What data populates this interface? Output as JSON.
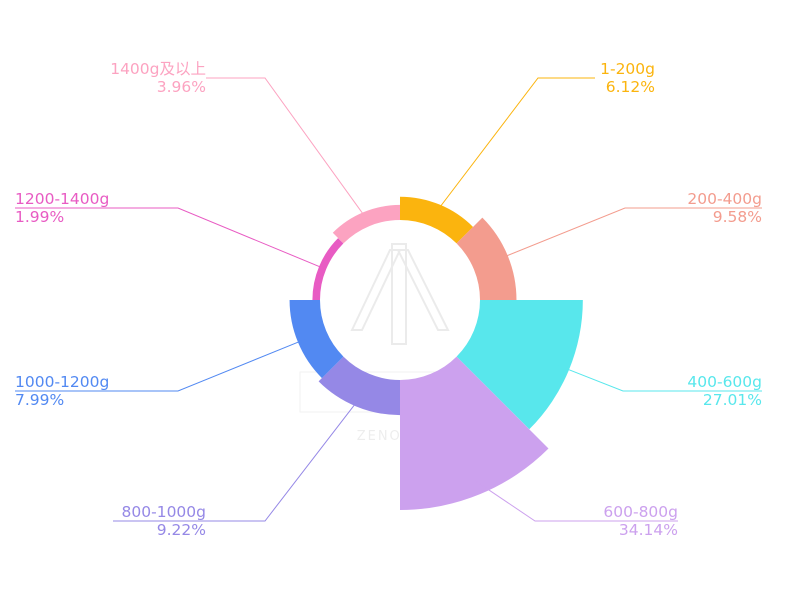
{
  "chart_data": {
    "type": "pie",
    "variant": "nightingale-rose",
    "categories": [
      "1-200g",
      "200-400g",
      "400-600g",
      "600-800g",
      "800-1000g",
      "1000-1200g",
      "1200-1400g",
      "1400g及以上"
    ],
    "values": [
      6.12,
      9.58,
      27.01,
      34.14,
      9.22,
      7.99,
      1.99,
      3.96
    ],
    "value_labels": [
      "6.12%",
      "9.58%",
      "27.01%",
      "34.14%",
      "9.22%",
      "7.99%",
      "1.99%",
      "3.96%"
    ],
    "colors": [
      "#fbb40e",
      "#f39c8e",
      "#58e7ec",
      "#cca1ee",
      "#9588e6",
      "#5289f2",
      "#e85bc3",
      "#fca3c1"
    ],
    "watermark": "ZENODATA",
    "legend": "none"
  }
}
